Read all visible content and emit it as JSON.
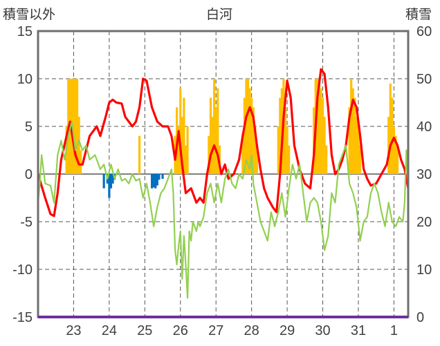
{
  "chart_data": {
    "type": "bar+line",
    "title": "白河",
    "left_axis_label": "積雪以外",
    "right_axis_label": "積雪",
    "left_ylim": [
      -15,
      15
    ],
    "left_yticks": [
      "15",
      "10",
      "5",
      "0",
      "-5",
      "-10",
      "-15"
    ],
    "right_ylim": [
      0,
      60
    ],
    "right_yticks": [
      "60",
      "50",
      "40",
      "30",
      "20",
      "10",
      "0"
    ],
    "x_ticks": [
      "23",
      "24",
      "25",
      "26",
      "27",
      "28",
      "29",
      "30",
      "31",
      "1"
    ],
    "grid": "dashed",
    "colors": {
      "snow_depth_bars": "#ffc000",
      "negative_bars": "#0070c0",
      "red_series": "#ff0000",
      "green_series": "#92d050",
      "bottom_line": "#7030a0"
    },
    "series": [
      {
        "axis": "right",
        "kind": "bar",
        "color": "snow_depth_bars",
        "points": [
          [
            22.8,
            40
          ],
          [
            22.85,
            50
          ],
          [
            22.9,
            50
          ],
          [
            22.95,
            50
          ],
          [
            23.0,
            50
          ],
          [
            23.05,
            50
          ],
          [
            23.1,
            50
          ],
          [
            23.15,
            42
          ],
          [
            23.2,
            35
          ],
          [
            24.85,
            38
          ],
          [
            25.8,
            30
          ],
          [
            25.85,
            38
          ],
          [
            25.9,
            44
          ],
          [
            25.95,
            40
          ],
          [
            26.0,
            48
          ],
          [
            26.05,
            42
          ],
          [
            26.1,
            46
          ],
          [
            26.15,
            36
          ],
          [
            26.2,
            40
          ],
          [
            26.8,
            38
          ],
          [
            26.85,
            46
          ],
          [
            26.9,
            42
          ],
          [
            26.95,
            50
          ],
          [
            27.0,
            44
          ],
          [
            27.05,
            48
          ],
          [
            27.1,
            36
          ],
          [
            27.75,
            38
          ],
          [
            27.8,
            46
          ],
          [
            27.85,
            50
          ],
          [
            27.9,
            50
          ],
          [
            27.95,
            48
          ],
          [
            28.0,
            46
          ],
          [
            28.05,
            44
          ],
          [
            28.1,
            40
          ],
          [
            28.15,
            36
          ],
          [
            28.75,
            40
          ],
          [
            28.8,
            46
          ],
          [
            28.85,
            48
          ],
          [
            28.9,
            50
          ],
          [
            28.95,
            44
          ],
          [
            29.0,
            40
          ],
          [
            29.05,
            36
          ],
          [
            29.75,
            44
          ],
          [
            29.8,
            50
          ],
          [
            29.85,
            50
          ],
          [
            29.9,
            50
          ],
          [
            29.95,
            48
          ],
          [
            30.0,
            46
          ],
          [
            30.05,
            42
          ],
          [
            30.1,
            36
          ],
          [
            30.75,
            44
          ],
          [
            30.8,
            50
          ],
          [
            30.85,
            48
          ],
          [
            30.9,
            46
          ],
          [
            30.95,
            42
          ],
          [
            31.0,
            40
          ],
          [
            31.05,
            36
          ],
          [
            31.85,
            42
          ],
          [
            31.9,
            49
          ],
          [
            31.95,
            46
          ],
          [
            32.0,
            40
          ],
          [
            32.05,
            38
          ],
          [
            32.1,
            36
          ]
        ]
      },
      {
        "axis": "left",
        "kind": "bar",
        "color": "negative_bars",
        "points": [
          [
            23.85,
            -1.5
          ],
          [
            23.95,
            -1.0
          ],
          [
            24.0,
            -2.5
          ],
          [
            24.05,
            -1.5
          ],
          [
            24.1,
            -1.0
          ],
          [
            24.15,
            -0.6
          ],
          [
            25.2,
            -1.5
          ],
          [
            25.25,
            -1.4
          ],
          [
            25.3,
            -1.5
          ],
          [
            25.35,
            -1.2
          ],
          [
            25.4,
            -0.6
          ],
          [
            25.5,
            -0.5
          ]
        ]
      },
      {
        "axis": "left",
        "kind": "line",
        "color": "red_series",
        "points": [
          [
            22.0,
            0
          ],
          [
            22.2,
            -2.5
          ],
          [
            22.35,
            -4.2
          ],
          [
            22.45,
            -4.4
          ],
          [
            22.55,
            -2
          ],
          [
            22.65,
            1.5
          ],
          [
            22.8,
            4
          ],
          [
            22.9,
            5.5
          ],
          [
            23.05,
            2
          ],
          [
            23.15,
            1
          ],
          [
            23.25,
            1
          ],
          [
            23.45,
            4
          ],
          [
            23.65,
            5
          ],
          [
            23.75,
            4
          ],
          [
            23.9,
            6
          ],
          [
            24.0,
            7.5
          ],
          [
            24.1,
            7.8
          ],
          [
            24.2,
            7.5
          ],
          [
            24.35,
            7.4
          ],
          [
            24.45,
            6
          ],
          [
            24.55,
            5.5
          ],
          [
            24.65,
            5
          ],
          [
            24.75,
            5.5
          ],
          [
            24.85,
            7
          ],
          [
            24.95,
            10
          ],
          [
            25.05,
            9.8
          ],
          [
            25.2,
            7
          ],
          [
            25.35,
            5.5
          ],
          [
            25.5,
            5
          ],
          [
            25.65,
            5
          ],
          [
            25.75,
            4
          ],
          [
            25.85,
            1.5
          ],
          [
            25.95,
            4.5
          ],
          [
            26.05,
            1
          ],
          [
            26.15,
            -2
          ],
          [
            26.3,
            -1.5
          ],
          [
            26.45,
            -3
          ],
          [
            26.55,
            -2.5
          ],
          [
            26.65,
            -3
          ],
          [
            26.75,
            0
          ],
          [
            26.85,
            2
          ],
          [
            26.95,
            3
          ],
          [
            27.05,
            2
          ],
          [
            27.15,
            0
          ],
          [
            27.25,
            1
          ],
          [
            27.35,
            -0.5
          ],
          [
            27.5,
            0
          ],
          [
            27.65,
            1.5
          ],
          [
            27.75,
            4
          ],
          [
            27.85,
            6
          ],
          [
            27.95,
            7
          ],
          [
            28.05,
            6
          ],
          [
            28.15,
            3
          ],
          [
            28.25,
            0.5
          ],
          [
            28.35,
            -1.5
          ],
          [
            28.45,
            -2.5
          ],
          [
            28.6,
            -3.5
          ],
          [
            28.7,
            -4
          ],
          [
            28.8,
            0
          ],
          [
            28.9,
            6
          ],
          [
            29.0,
            9.8
          ],
          [
            29.1,
            8
          ],
          [
            29.2,
            3
          ],
          [
            29.35,
            0.5
          ],
          [
            29.5,
            -1
          ],
          [
            29.65,
            -1.5
          ],
          [
            29.75,
            2
          ],
          [
            29.85,
            8
          ],
          [
            29.95,
            11
          ],
          [
            30.05,
            10.5
          ],
          [
            30.15,
            7
          ],
          [
            30.25,
            2
          ],
          [
            30.35,
            0
          ],
          [
            30.45,
            0.5
          ],
          [
            30.55,
            1.5
          ],
          [
            30.65,
            3
          ],
          [
            30.75,
            6
          ],
          [
            30.85,
            7.8
          ],
          [
            30.95,
            7
          ],
          [
            31.05,
            4
          ],
          [
            31.15,
            0.5
          ],
          [
            31.25,
            -0.5
          ],
          [
            31.35,
            -1.2
          ],
          [
            31.5,
            -1
          ],
          [
            31.65,
            0
          ],
          [
            31.8,
            1
          ],
          [
            31.9,
            3
          ],
          [
            32.0,
            3.8
          ],
          [
            32.1,
            3
          ],
          [
            32.2,
            1.5
          ],
          [
            32.3,
            0.5
          ],
          [
            32.4,
            -1.5
          ]
        ]
      },
      {
        "axis": "left",
        "kind": "line",
        "color": "green_series",
        "points": [
          [
            22.0,
            -3
          ],
          [
            22.05,
            -1
          ],
          [
            22.1,
            2
          ],
          [
            22.2,
            -1
          ],
          [
            22.35,
            -1.2
          ],
          [
            22.45,
            -3
          ],
          [
            22.55,
            2
          ],
          [
            22.65,
            3.5
          ],
          [
            22.75,
            1.5
          ],
          [
            22.85,
            4
          ],
          [
            22.95,
            5.5
          ],
          [
            23.05,
            2.5
          ],
          [
            23.15,
            3.5
          ],
          [
            23.25,
            2.5
          ],
          [
            23.35,
            3
          ],
          [
            23.45,
            1.5
          ],
          [
            23.6,
            2
          ],
          [
            23.75,
            0.5
          ],
          [
            23.85,
            1
          ],
          [
            23.95,
            -0.5
          ],
          [
            24.05,
            1
          ],
          [
            24.15,
            -0.5
          ],
          [
            24.25,
            0.5
          ],
          [
            24.35,
            -0.7
          ],
          [
            24.45,
            -0.5
          ],
          [
            24.55,
            -1
          ],
          [
            24.65,
            0
          ],
          [
            24.75,
            -0.7
          ],
          [
            24.85,
            -0.5
          ],
          [
            24.95,
            -2.5
          ],
          [
            25.05,
            -1
          ],
          [
            25.15,
            -3
          ],
          [
            25.25,
            -5.5
          ],
          [
            25.35,
            -3.5
          ],
          [
            25.45,
            -2
          ],
          [
            25.55,
            -1.5
          ],
          [
            25.65,
            -0.5
          ],
          [
            25.75,
            0.5
          ],
          [
            25.8,
            -2
          ],
          [
            25.85,
            -8
          ],
          [
            25.9,
            -9.5
          ],
          [
            25.95,
            -7.5
          ],
          [
            26.0,
            -6
          ],
          [
            26.05,
            -11
          ],
          [
            26.1,
            -6.5
          ],
          [
            26.15,
            -9.5
          ],
          [
            26.2,
            -13
          ],
          [
            26.25,
            -6
          ],
          [
            26.3,
            -7
          ],
          [
            26.35,
            -5
          ],
          [
            26.45,
            -6
          ],
          [
            26.5,
            -5
          ],
          [
            26.55,
            -5.5
          ],
          [
            26.65,
            -4.5
          ],
          [
            26.75,
            -2
          ],
          [
            26.85,
            -1
          ],
          [
            26.95,
            -3
          ],
          [
            27.05,
            -1
          ],
          [
            27.15,
            -3
          ],
          [
            27.25,
            -0.5
          ],
          [
            27.35,
            0.5
          ],
          [
            27.45,
            -1
          ],
          [
            27.55,
            -1.5
          ],
          [
            27.65,
            0
          ],
          [
            27.75,
            -0.5
          ],
          [
            27.85,
            1.5
          ],
          [
            27.95,
            0.5
          ],
          [
            28.0,
            2
          ],
          [
            28.05,
            -1
          ],
          [
            28.15,
            -3
          ],
          [
            28.25,
            -5
          ],
          [
            28.35,
            -6
          ],
          [
            28.45,
            -7
          ],
          [
            28.55,
            -4
          ],
          [
            28.65,
            -5.5
          ],
          [
            28.75,
            -4
          ],
          [
            28.85,
            -2
          ],
          [
            28.95,
            -4.5
          ],
          [
            29.05,
            -1.5
          ],
          [
            29.15,
            1
          ],
          [
            29.25,
            -0.5
          ],
          [
            29.35,
            1
          ],
          [
            29.45,
            -2
          ],
          [
            29.55,
            -5
          ],
          [
            29.65,
            -3
          ],
          [
            29.75,
            -2.5
          ],
          [
            29.85,
            -3
          ],
          [
            29.95,
            -5
          ],
          [
            30.05,
            -8
          ],
          [
            30.15,
            -6.5
          ],
          [
            30.25,
            -2
          ],
          [
            30.35,
            -3
          ],
          [
            30.45,
            1
          ],
          [
            30.55,
            2
          ],
          [
            30.65,
            3
          ],
          [
            30.75,
            -1
          ],
          [
            30.85,
            -2
          ],
          [
            30.95,
            -3.5
          ],
          [
            31.05,
            -7
          ],
          [
            31.15,
            -5
          ],
          [
            31.25,
            -4.5
          ],
          [
            31.35,
            -2
          ],
          [
            31.45,
            -1
          ],
          [
            31.55,
            -2
          ],
          [
            31.65,
            -4
          ],
          [
            31.75,
            -5.5
          ],
          [
            31.85,
            -3
          ],
          [
            31.95,
            -5
          ],
          [
            32.05,
            -5.5
          ],
          [
            32.15,
            -4.5
          ],
          [
            32.25,
            -5
          ],
          [
            32.3,
            -3
          ],
          [
            32.35,
            2.5
          ],
          [
            32.4,
            -1.5
          ]
        ]
      }
    ]
  }
}
